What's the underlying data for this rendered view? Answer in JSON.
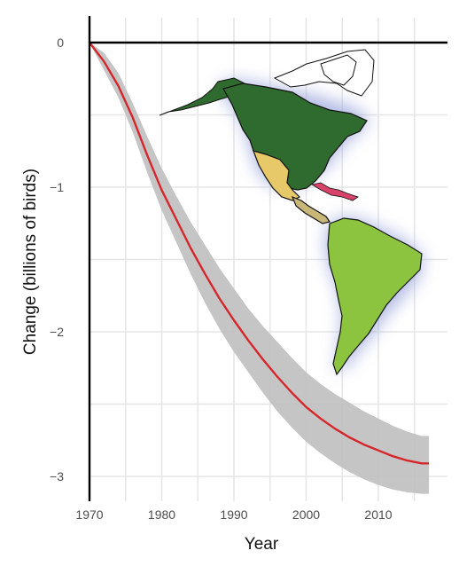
{
  "chart_data": {
    "type": "line",
    "xlabel": "Year",
    "ylabel": "Change (billions of birds)",
    "xlim": [
      1970,
      2018
    ],
    "ylim": [
      -3.15,
      0.15
    ],
    "x_ticks": [
      1970,
      1980,
      1990,
      2000,
      2010
    ],
    "x_tick_labels": [
      "1970",
      "1980",
      "1990",
      "2000",
      "2010"
    ],
    "y_ticks": [
      0,
      -1,
      -2,
      -3
    ],
    "y_tick_labels": [
      "0",
      "−1",
      "−2",
      "−3"
    ],
    "grid": true,
    "colors": {
      "line": "#d7262b",
      "band": "#bfbfbf",
      "grid": "#e6e6e6",
      "axis": "#000000",
      "north_america": "#2f6b2f",
      "mexico": "#e8c96a",
      "central_america": "#c9b77a",
      "south_america": "#8cc43f",
      "map_glow": "#a6aee0"
    },
    "inset_image": "map-of-the-americas",
    "series": [
      {
        "x": [
          1970,
          1972,
          1974,
          1976,
          1978,
          1980,
          1982,
          1984,
          1986,
          1988,
          1990,
          1992,
          1994,
          1996,
          1998,
          2000,
          2002,
          2004,
          2006,
          2008,
          2010,
          2012,
          2014,
          2016,
          2017
        ],
        "y": [
          0,
          -0.13,
          -0.3,
          -0.52,
          -0.78,
          -1.02,
          -1.22,
          -1.42,
          -1.6,
          -1.77,
          -1.92,
          -2.06,
          -2.19,
          -2.31,
          -2.42,
          -2.52,
          -2.6,
          -2.67,
          -2.73,
          -2.78,
          -2.82,
          -2.86,
          -2.89,
          -2.91,
          -2.91
        ],
        "lower": [
          0,
          -0.19,
          -0.38,
          -0.62,
          -0.9,
          -1.16,
          -1.38,
          -1.6,
          -1.8,
          -1.98,
          -2.14,
          -2.28,
          -2.42,
          -2.55,
          -2.66,
          -2.76,
          -2.84,
          -2.91,
          -2.97,
          -3.02,
          -3.06,
          -3.09,
          -3.11,
          -3.12,
          -3.12
        ],
        "upper": [
          0,
          -0.07,
          -0.21,
          -0.42,
          -0.65,
          -0.87,
          -1.06,
          -1.24,
          -1.4,
          -1.56,
          -1.7,
          -1.84,
          -1.96,
          -2.07,
          -2.18,
          -2.28,
          -2.36,
          -2.43,
          -2.49,
          -2.55,
          -2.6,
          -2.65,
          -2.69,
          -2.72,
          -2.72
        ]
      }
    ]
  }
}
